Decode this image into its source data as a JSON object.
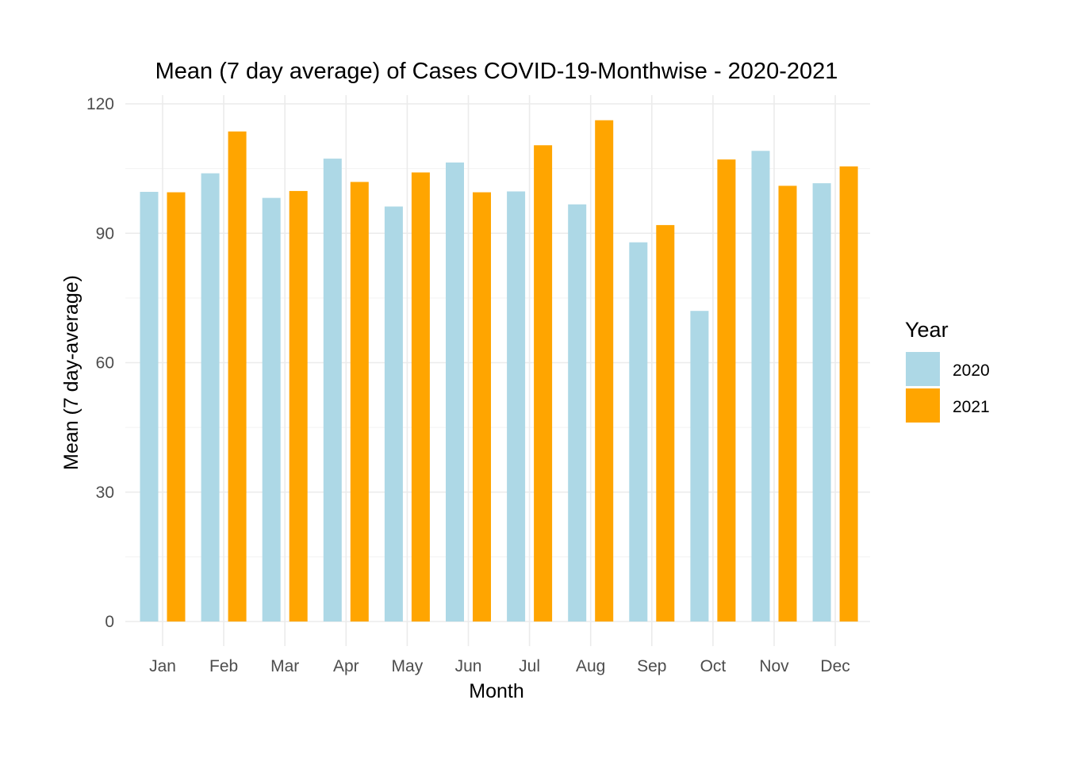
{
  "chart_data": {
    "type": "bar",
    "title": "Mean (7 day average) of Cases COVID-19-Monthwise - 2020-2021",
    "xlabel": "Month",
    "ylabel": "Mean (7 day-average)",
    "categories": [
      "Jan",
      "Feb",
      "Mar",
      "Apr",
      "May",
      "Jun",
      "Jul",
      "Aug",
      "Sep",
      "Oct",
      "Nov",
      "Dec"
    ],
    "series": [
      {
        "name": "2020",
        "color": "#add8e6",
        "values": [
          99.6,
          103.9,
          98.2,
          107.3,
          96.2,
          106.4,
          99.7,
          96.7,
          87.9,
          72.0,
          109.1,
          101.6
        ]
      },
      {
        "name": "2021",
        "color": "#ffa500",
        "values": [
          99.5,
          113.6,
          99.8,
          101.9,
          104.1,
          99.5,
          110.4,
          116.2,
          91.9,
          107.1,
          101.0,
          105.5
        ]
      }
    ],
    "ylim": [
      0,
      120
    ],
    "yticks": [
      0,
      30,
      60,
      90,
      120
    ],
    "grid": true,
    "legend": {
      "title": "Year",
      "position": "right"
    }
  }
}
